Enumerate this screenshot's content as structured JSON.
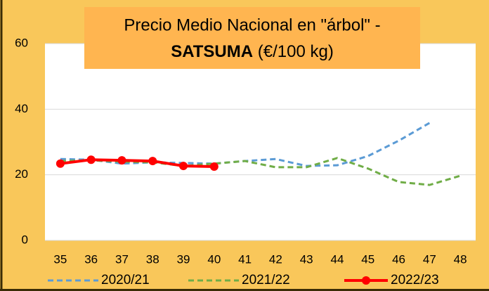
{
  "chart_data": {
    "type": "line",
    "title": {
      "line1": "Precio Medio Nacional en \"árbol\" -",
      "bold": "SATSUMA",
      "rest": " (€/100 kg)"
    },
    "categories": [
      "35",
      "36",
      "37",
      "38",
      "39",
      "40",
      "41",
      "42",
      "43",
      "44",
      "45",
      "46",
      "47",
      "48"
    ],
    "series": [
      {
        "name": "2020/21",
        "color": "#5b9bd5",
        "dash": true,
        "markers": false,
        "values": [
          24.8,
          24.6,
          23.4,
          23.8,
          23.6,
          23.4,
          24.2,
          24.8,
          22.7,
          22.9,
          25.7,
          30.4,
          35.8,
          null
        ]
      },
      {
        "name": "2021/22",
        "color": "#70ad47",
        "dash": true,
        "markers": false,
        "values": [
          24.2,
          24.4,
          24.0,
          23.8,
          22.7,
          23.4,
          24.2,
          22.3,
          22.3,
          25.1,
          21.9,
          17.8,
          16.9,
          19.7
        ]
      },
      {
        "name": "2022/23",
        "color": "#ff0000",
        "dash": false,
        "markers": true,
        "values": [
          23.4,
          24.6,
          24.4,
          24.2,
          22.7,
          22.5,
          null,
          null,
          null,
          null,
          null,
          null,
          null,
          null
        ]
      }
    ],
    "ylim": [
      0,
      60
    ],
    "yticks": [
      0,
      20,
      40,
      60
    ],
    "grid": true,
    "legend": "bottom"
  }
}
